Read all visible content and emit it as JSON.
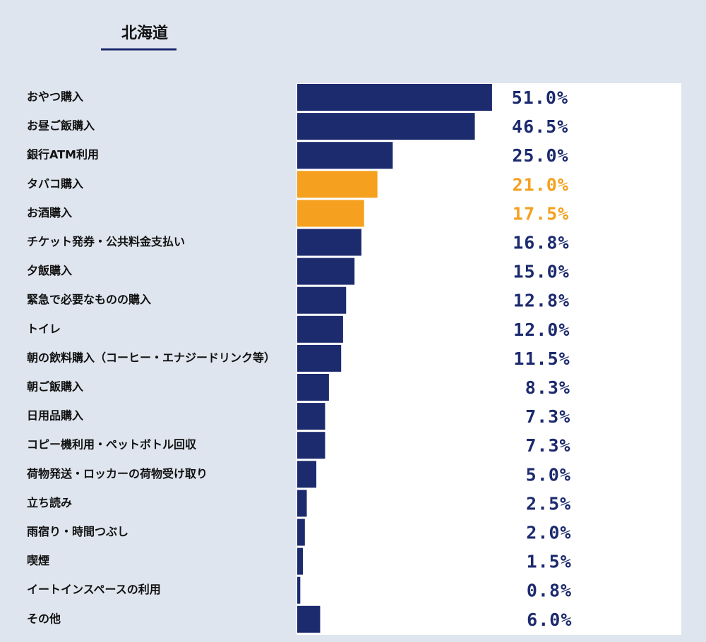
{
  "chart_data": {
    "type": "hbar",
    "title": "北海道",
    "categories": [
      "おやつ購入",
      "お昼ご飯購入",
      "銀行ATM利用",
      "タバコ購入",
      "お酒購入",
      "チケット発券・公共料金支払い",
      "夕飯購入",
      "緊急で必要なものの購入",
      "トイレ",
      "朝の飲料購入（コーヒー・エナジードリンク等）",
      "朝ご飯購入",
      "日用品購入",
      "コピー機利用・ペットボトル回収",
      "荷物発送・ロッカーの荷物受け取り",
      "立ち読み",
      "雨宿り・時間つぶし",
      "喫煙",
      "イートインスペースの利用",
      "その他"
    ],
    "values": [
      51.0,
      46.5,
      25.0,
      21.0,
      17.5,
      16.8,
      15.0,
      12.8,
      12.0,
      11.5,
      8.3,
      7.3,
      7.3,
      5.0,
      2.5,
      2.0,
      1.5,
      0.8,
      6.0
    ],
    "value_labels": [
      "51.0%",
      "46.5%",
      "25.0%",
      "21.0%",
      "17.5%",
      "16.8%",
      "15.0%",
      "12.8%",
      "12.0%",
      "11.5%",
      "8.3%",
      "7.3%",
      "7.3%",
      "5.0%",
      "2.5%",
      "2.0%",
      "1.5%",
      "0.8%",
      "6.0%"
    ],
    "colors": [
      "#1c2a6e",
      "#1c2a6e",
      "#1c2a6e",
      "#f5a01e",
      "#f5a01e",
      "#1c2a6e",
      "#1c2a6e",
      "#1c2a6e",
      "#1c2a6e",
      "#1c2a6e",
      "#1c2a6e",
      "#1c2a6e",
      "#1c2a6e",
      "#1c2a6e",
      "#1c2a6e",
      "#1c2a6e",
      "#1c2a6e",
      "#1c2a6e",
      "#1c2a6e"
    ]
  }
}
